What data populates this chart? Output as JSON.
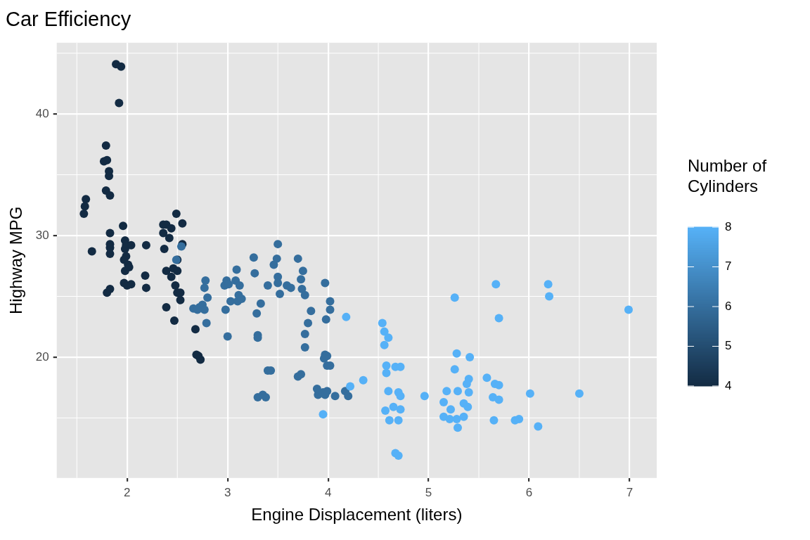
{
  "chart_data": {
    "type": "scatter",
    "title": "Car Efficiency",
    "xlabel": "Engine Displacement (liters)",
    "ylabel": "Highway MPG",
    "clabel": "Number of Cylinders",
    "xlim": [
      1.3,
      7.27
    ],
    "ylim": [
      10.06,
      45.86
    ],
    "xticks": [
      2,
      3,
      4,
      5,
      6,
      7
    ],
    "yticks": [
      20,
      30,
      40
    ],
    "grid": true,
    "clim": [
      4,
      8
    ],
    "cticks": [
      4,
      5,
      6,
      7,
      8
    ],
    "x": [
      1.89,
      1.94,
      1.92,
      1.79,
      1.77,
      1.8,
      1.82,
      1.82,
      1.79,
      1.83,
      1.59,
      1.58,
      1.57,
      1.65,
      1.83,
      1.83,
      1.83,
      1.83,
      1.8,
      1.83,
      1.96,
      1.98,
      1.99,
      1.98,
      1.99,
      1.97,
      2.01,
      1.98,
      2.02,
      1.97,
      2.0,
      2.04,
      2.04,
      2.19,
      2.19,
      2.18,
      2.36,
      2.39,
      2.44,
      2.49,
      2.55,
      2.36,
      2.42,
      2.37,
      2.39,
      2.46,
      2.44,
      2.5,
      2.48,
      2.5,
      2.53,
      2.39,
      2.47,
      2.5,
      2.55,
      2.53,
      2.68,
      2.71,
      2.73,
      2.69,
      2.49,
      2.54,
      2.66,
      2.72,
      2.78,
      2.77,
      2.8,
      2.75,
      2.77,
      2.79,
      2.7,
      2.99,
      2.97,
      3.01,
      2.98,
      3.0,
      3.08,
      3.09,
      3.12,
      3.03,
      3.1,
      3.11,
      3.14,
      3.26,
      3.27,
      3.29,
      3.3,
      3.3,
      3.33,
      3.46,
      3.4,
      3.5,
      3.5,
      3.52,
      3.59,
      3.63,
      3.7,
      3.75,
      3.73,
      3.74,
      3.77,
      3.97,
      3.83,
      3.8,
      3.77,
      3.77,
      3.97,
      3.99,
      3.96,
      3.99,
      4.02,
      4.02,
      3.98,
      4.02,
      3.5,
      3.49,
      3.3,
      3.35,
      3.38,
      3.4,
      3.43,
      3.7,
      3.73,
      3.9,
      3.95,
      3.97,
      3.99,
      3.89,
      4.07,
      4.17,
      4.2,
      4.18,
      3.95,
      4.22,
      4.35,
      4.54,
      4.56,
      4.6,
      4.56,
      4.58,
      4.58,
      4.67,
      4.72,
      4.6,
      4.7,
      4.72,
      4.57,
      4.65,
      4.72,
      4.61,
      4.7,
      4.67,
      4.7,
      4.96,
      5.26,
      5.28,
      5.26,
      5.29,
      5.18,
      5.15,
      5.22,
      5.15,
      5.21,
      5.28,
      5.35,
      5.29,
      5.4,
      5.38,
      5.4,
      5.35,
      5.39,
      5.58,
      5.67,
      5.66,
      5.7,
      5.64,
      5.7,
      5.65,
      5.7,
      5.9,
      5.86,
      6.09,
      6.01,
      6.19,
      6.2,
      6.5,
      6.99,
      5.41
    ],
    "values": [
      44.1,
      43.9,
      40.9,
      37.4,
      36.1,
      36.2,
      35.3,
      34.9,
      33.7,
      33.3,
      33.0,
      32.4,
      31.8,
      28.7,
      30.2,
      29.3,
      29.0,
      28.5,
      25.3,
      25.6,
      30.8,
      29.6,
      29.2,
      28.9,
      28.3,
      28.0,
      27.6,
      27.1,
      27.4,
      26.1,
      25.9,
      26.0,
      29.2,
      29.2,
      25.7,
      26.7,
      30.9,
      30.9,
      30.6,
      31.8,
      31.0,
      30.2,
      29.8,
      28.9,
      27.1,
      27.3,
      26.6,
      27.1,
      25.9,
      25.3,
      24.7,
      24.1,
      23.0,
      28.0,
      29.3,
      25.3,
      22.3,
      20.1,
      19.8,
      20.2,
      28.0,
      29.1,
      24.0,
      24.1,
      26.3,
      25.7,
      24.9,
      24.3,
      23.9,
      22.8,
      23.9,
      26.3,
      25.9,
      26.0,
      23.9,
      21.7,
      26.3,
      27.2,
      25.9,
      24.6,
      24.6,
      25.1,
      24.8,
      28.2,
      26.9,
      23.6,
      21.8,
      21.6,
      24.4,
      27.6,
      25.9,
      26.6,
      26.1,
      25.2,
      25.9,
      25.7,
      28.1,
      27.1,
      26.4,
      25.6,
      25.1,
      26.1,
      23.8,
      22.8,
      21.9,
      20.8,
      20.2,
      20.1,
      19.9,
      19.3,
      19.3,
      24.6,
      23.1,
      23.9,
      29.3,
      28.1,
      16.7,
      16.9,
      16.7,
      18.9,
      18.9,
      18.4,
      18.6,
      16.9,
      17.1,
      16.9,
      17.2,
      17.4,
      16.8,
      17.2,
      16.8,
      23.3,
      15.3,
      17.6,
      18.1,
      22.8,
      22.1,
      21.6,
      21.0,
      19.3,
      18.7,
      19.2,
      19.2,
      17.2,
      17.1,
      16.8,
      15.6,
      15.9,
      15.7,
      14.8,
      14.8,
      12.1,
      11.9,
      16.8,
      24.9,
      20.3,
      19.0,
      17.2,
      17.2,
      16.3,
      15.7,
      15.1,
      14.9,
      14.9,
      15.1,
      14.2,
      18.2,
      17.8,
      17.1,
      16.2,
      15.9,
      18.3,
      26.0,
      17.8,
      17.7,
      16.7,
      16.5,
      14.8,
      23.2,
      14.9,
      14.8,
      14.3,
      17.0,
      26.0,
      25.0,
      17.0,
      23.9,
      20.0
    ],
    "cvalues": [
      4,
      4,
      4,
      4,
      4,
      4,
      4,
      4,
      4,
      4,
      4,
      4,
      4,
      4,
      4,
      4,
      4,
      4,
      4,
      4,
      4,
      4,
      4,
      4,
      4,
      4,
      4,
      4,
      4,
      4,
      4,
      4,
      4,
      4,
      4,
      4,
      4,
      4,
      4,
      4,
      4,
      4,
      4,
      4,
      4,
      4,
      4,
      4,
      4,
      4,
      4,
      4,
      4,
      4,
      4,
      4,
      4,
      4,
      4,
      4,
      6,
      6,
      6,
      6,
      6,
      6,
      6,
      6,
      6,
      6,
      6,
      6,
      6,
      6,
      6,
      6,
      6,
      6,
      6,
      6,
      6,
      6,
      6,
      6,
      6,
      6,
      6,
      6,
      6,
      6,
      6,
      6,
      6,
      6,
      6,
      6,
      6,
      6,
      6,
      6,
      6,
      6,
      6,
      6,
      6,
      6,
      6,
      6,
      6,
      6,
      6,
      6,
      6,
      6,
      6,
      6,
      6,
      6,
      6,
      6,
      6,
      6,
      6,
      6,
      6,
      6,
      6,
      6,
      6,
      6,
      6,
      8,
      8,
      8,
      8,
      8,
      8,
      8,
      8,
      8,
      8,
      8,
      8,
      8,
      8,
      8,
      8,
      8,
      8,
      8,
      8,
      8,
      8,
      8,
      8,
      8,
      8,
      8,
      8,
      8,
      8,
      8,
      8,
      8,
      8,
      8,
      8,
      8,
      8,
      8,
      8,
      8,
      8,
      8,
      8,
      8,
      8,
      8,
      8,
      8,
      8,
      8,
      8,
      8,
      8,
      8,
      8,
      8
    ]
  }
}
